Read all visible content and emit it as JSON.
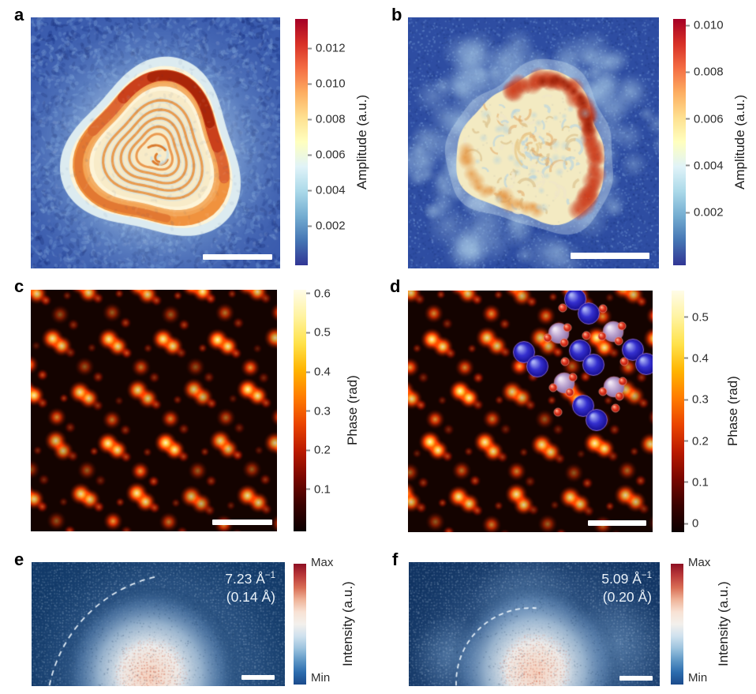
{
  "figure": {
    "panels": {
      "a": {
        "label": "a",
        "colorbar": {
          "ticks": [
            "0.012",
            "0.010",
            "0.008",
            "0.006",
            "0.004",
            "0.002"
          ],
          "axis_label": "Amplitude (a.u.)"
        }
      },
      "b": {
        "label": "b",
        "colorbar": {
          "ticks": [
            "0.010",
            "0.008",
            "0.006",
            "0.004",
            "0.002"
          ],
          "axis_label": "Amplitude (a.u.)"
        }
      },
      "c": {
        "label": "c",
        "colorbar": {
          "ticks": [
            "0.6",
            "0.5",
            "0.4",
            "0.3",
            "0.2",
            "0.1"
          ],
          "axis_label": "Phase (rad)"
        }
      },
      "d": {
        "label": "d",
        "colorbar": {
          "ticks": [
            "0.5",
            "0.4",
            "0.3",
            "0.2",
            "0.1",
            "0"
          ],
          "axis_label": "Phase (rad)"
        }
      },
      "e": {
        "label": "e",
        "annotation": {
          "value": "7.23 Å",
          "exponent": "−1",
          "detail": "(0.14 Å)"
        },
        "colorbar": {
          "max_label": "Max",
          "min_label": "Min",
          "axis_label": "Intensity (a.u.)"
        }
      },
      "f": {
        "label": "f",
        "annotation": {
          "value": "5.09 Å",
          "exponent": "−1",
          "detail": "(0.20 Å)"
        },
        "colorbar": {
          "max_label": "Max",
          "min_label": "Min",
          "axis_label": "Intensity (a.u.)"
        }
      }
    },
    "colors": {
      "amplitude_cmap": [
        "#a50026",
        "#d73027",
        "#f46d43",
        "#fdae61",
        "#fee090",
        "#ffffbf",
        "#e0f3f8",
        "#abd9e9",
        "#74add1",
        "#4575b4",
        "#313695"
      ],
      "phase_cmap": [
        "#fffce8",
        "#fff3a0",
        "#ffe24a",
        "#ffb400",
        "#ff7c00",
        "#ea4400",
        "#bb1a00",
        "#7a0700",
        "#3a0100",
        "#0b0000"
      ],
      "intensity_cmap": [
        "#8e1023",
        "#bb3a3a",
        "#d96f56",
        "#efb49a",
        "#f8e2d4",
        "#f3f0ec",
        "#cfe1ee",
        "#9cc3de",
        "#5e97c6",
        "#2c6cae",
        "#1b4a8b"
      ],
      "panel_ab_background": "#3b5cae",
      "panel_b_background": "#2e4da2",
      "panel_cd_background": "#140300",
      "panel_e_background": "#123a69",
      "panel_f_background": "#113463",
      "atom_blue": "#3530cf",
      "atom_lilac": "#bda6d1",
      "atom_red": "#e43a22",
      "scale_bar": "#ffffff",
      "annotation_text": "#e9f1f8"
    }
  }
}
